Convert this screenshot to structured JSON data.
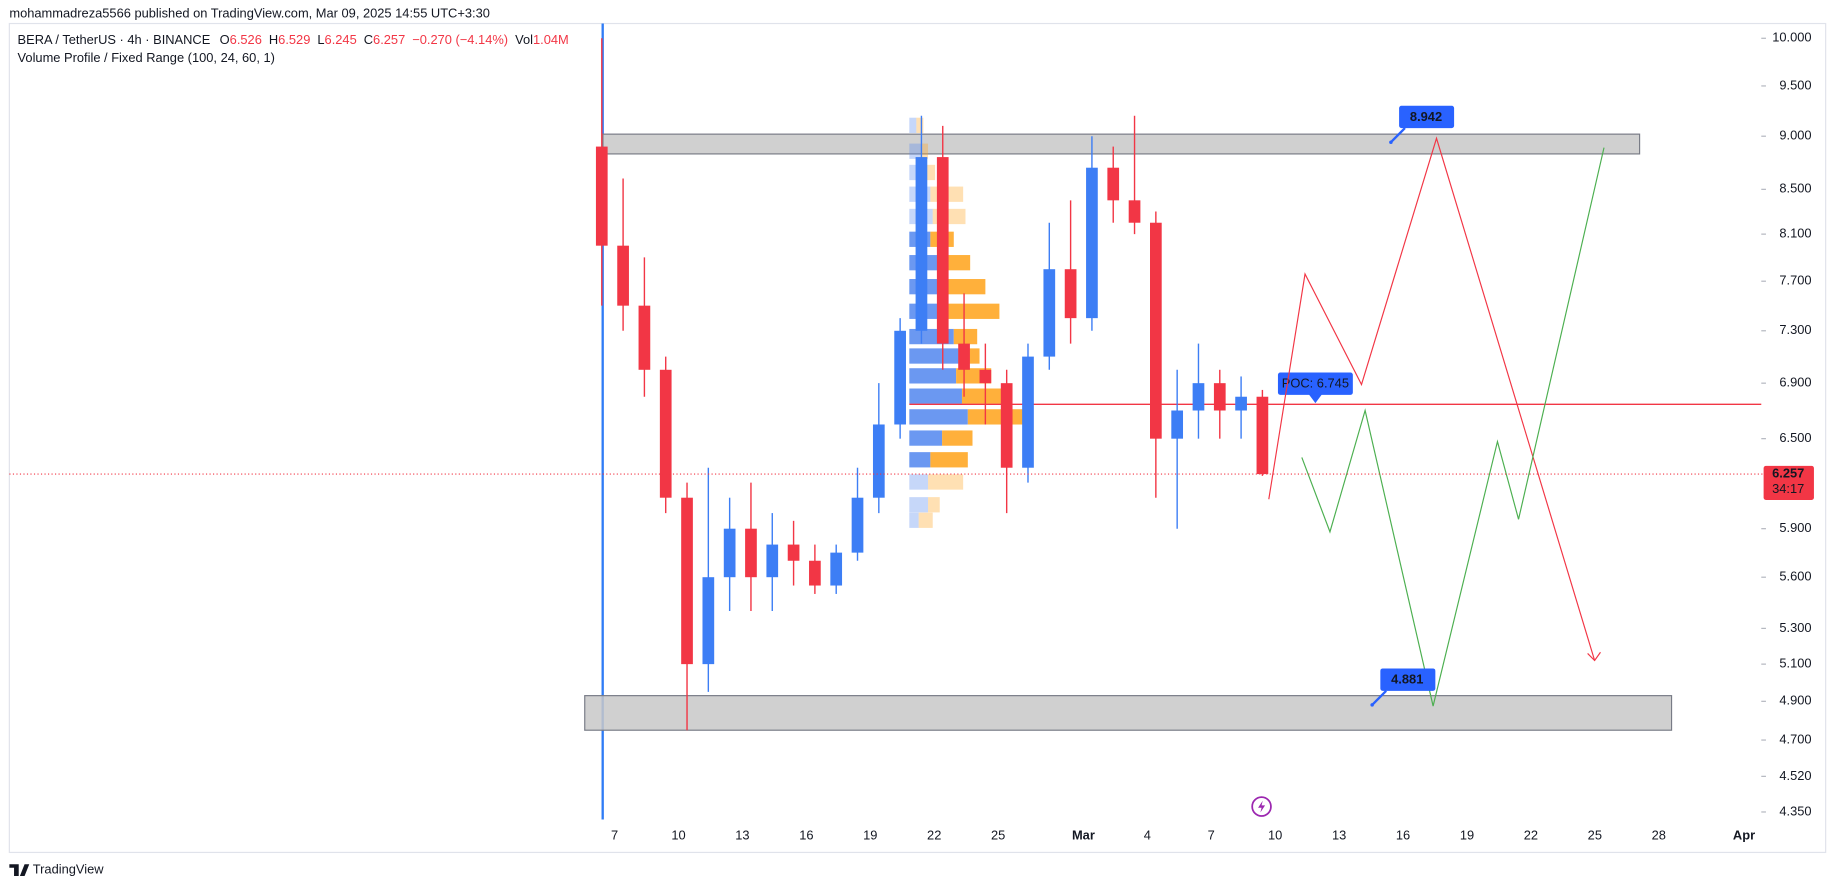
{
  "header": {
    "publisher": "mohammadreza5566 published on TradingView.com, Mar 09, 2025 14:55 UTC+3:30"
  },
  "legend": {
    "symbol": "BERA / TetherUS · 4h · BINANCE",
    "open_label": "O",
    "open": "6.526",
    "high_label": "H",
    "high": "6.529",
    "low_label": "L",
    "low": "6.245",
    "close_label": "C",
    "close": "6.257",
    "change": "−0.270 (−4.14%)",
    "volume_label": "Vol",
    "volume": "1.04M",
    "indicator": "Volume Profile / Fixed Range (100, 24, 60, 1)"
  },
  "chart_data": {
    "type": "candlestick",
    "log_scale": true,
    "grid": false,
    "up_color": "#3d7ef5",
    "down_color": "#f23645",
    "x": [
      37,
      38,
      39,
      40,
      41,
      42,
      43,
      44,
      45,
      46,
      47,
      48,
      49,
      50,
      51,
      52,
      53,
      54,
      55,
      56,
      57,
      58,
      59,
      60,
      61,
      62,
      63,
      64,
      65,
      66,
      67,
      68
    ],
    "open": [
      8.9,
      8.0,
      7.5,
      7.0,
      6.1,
      5.1,
      5.6,
      5.9,
      5.6,
      5.8,
      5.7,
      5.55,
      5.75,
      6.1,
      6.6,
      7.3,
      8.8,
      7.2,
      7.0,
      6.9,
      6.3,
      7.1,
      7.8,
      7.4,
      8.7,
      8.4,
      8.2,
      6.5,
      6.7,
      6.9,
      6.7,
      6.8
    ],
    "high": [
      10.0,
      8.6,
      7.9,
      7.1,
      6.2,
      6.3,
      6.1,
      6.2,
      6.0,
      5.95,
      5.8,
      5.8,
      6.3,
      6.9,
      7.4,
      9.2,
      9.1,
      7.6,
      7.2,
      7.0,
      7.2,
      8.2,
      8.4,
      9.0,
      8.9,
      9.2,
      8.3,
      7.0,
      7.2,
      7.0,
      6.95,
      6.85
    ],
    "low": [
      7.5,
      7.3,
      6.8,
      6.0,
      4.75,
      4.95,
      5.4,
      5.4,
      5.4,
      5.55,
      5.5,
      5.5,
      5.7,
      6.0,
      6.5,
      7.2,
      7.0,
      6.8,
      6.6,
      6.0,
      6.2,
      7.0,
      7.2,
      7.3,
      8.2,
      8.1,
      6.1,
      5.9,
      6.5,
      6.5,
      6.5,
      6.245
    ],
    "close": [
      8.0,
      7.5,
      7.0,
      6.1,
      5.1,
      5.6,
      5.9,
      5.6,
      5.8,
      5.7,
      5.55,
      5.75,
      6.1,
      6.6,
      7.3,
      8.8,
      7.2,
      7.0,
      6.9,
      6.3,
      7.1,
      7.8,
      7.4,
      8.7,
      8.4,
      8.2,
      6.5,
      6.7,
      6.9,
      6.7,
      6.8,
      6.257
    ],
    "xlim": [
      9.6,
      91.7
    ],
    "xticks": [
      {
        "value": 38,
        "label": "7"
      },
      {
        "value": 41,
        "label": "10"
      },
      {
        "value": 44,
        "label": "13"
      },
      {
        "value": 47,
        "label": "16"
      },
      {
        "value": 50,
        "label": "19"
      },
      {
        "value": 53,
        "label": "22"
      },
      {
        "value": 56,
        "label": "25"
      },
      {
        "value": 60,
        "label": "Mar"
      },
      {
        "value": 63,
        "label": "4"
      },
      {
        "value": 66,
        "label": "7"
      },
      {
        "value": 69,
        "label": "10"
      },
      {
        "value": 72,
        "label": "13"
      },
      {
        "value": 75,
        "label": "16"
      },
      {
        "value": 78,
        "label": "19"
      },
      {
        "value": 81,
        "label": "22"
      },
      {
        "value": 84,
        "label": "25"
      },
      {
        "value": 87,
        "label": "28"
      },
      {
        "value": 91,
        "label": "Apr"
      }
    ],
    "ylim": [
      4.17,
      10.16
    ],
    "yticks": [
      {
        "value": 10,
        "label": "10.000"
      },
      {
        "value": 9.5,
        "label": "9.500"
      },
      {
        "value": 9,
        "label": "9.000"
      },
      {
        "value": 8.5,
        "label": "8.500"
      },
      {
        "value": 8.1,
        "label": "8.100"
      },
      {
        "value": 7.7,
        "label": "7.700"
      },
      {
        "value": 7.3,
        "label": "7.300"
      },
      {
        "value": 6.9,
        "label": "6.900"
      },
      {
        "value": 6.5,
        "label": "6.500"
      },
      {
        "value": 5.9,
        "label": "5.900"
      },
      {
        "value": 5.6,
        "label": "5.600"
      },
      {
        "value": 5.3,
        "label": "5.300"
      },
      {
        "value": 5.1,
        "label": "5.100"
      },
      {
        "value": 4.9,
        "label": "4.900"
      },
      {
        "value": 4.7,
        "label": "4.700"
      },
      {
        "value": 4.52,
        "label": "4.520"
      },
      {
        "value": 4.35,
        "label": "4.350"
      }
    ],
    "volume_profile": {
      "up_color": "#5b8def",
      "down_color": "#ffa726",
      "levels": [
        9.1,
        8.85,
        8.65,
        8.45,
        8.25,
        8.05,
        7.85,
        7.65,
        7.45,
        7.25,
        7.1,
        6.95,
        6.8,
        6.65,
        6.5,
        6.35,
        6.2,
        6.05,
        5.95
      ],
      "up_volume": [
        6,
        10,
        12,
        18,
        20,
        18,
        28,
        30,
        32,
        38,
        42,
        40,
        45,
        50,
        28,
        18,
        16,
        16,
        8
      ],
      "down_volume": [
        6,
        6,
        10,
        28,
        28,
        20,
        24,
        35,
        45,
        20,
        18,
        30,
        38,
        54,
        26,
        32,
        30,
        10,
        12
      ],
      "poc": 6.745,
      "poc_label": "POC: 6.745",
      "poc_color": "#f23645"
    },
    "zones": [
      {
        "x": [
          37.45,
          86.1
        ],
        "y": [
          8.83,
          9.02
        ]
      },
      {
        "x": [
          36.6,
          87.6
        ],
        "y": [
          4.75,
          4.93
        ]
      }
    ],
    "paths": [
      {
        "color": "#f23645",
        "x": [
          68.7,
          70.4,
          73.05,
          76.57,
          83.99
        ],
        "y": [
          6.09,
          7.76,
          6.89,
          8.98,
          5.12
        ]
      },
      {
        "color": "#4caf50",
        "x": [
          70.25,
          71.57,
          73.22,
          76.41,
          79.43,
          80.42,
          84.43
        ],
        "y": [
          6.37,
          5.88,
          6.7,
          4.875,
          6.48,
          5.96,
          8.89
        ]
      }
    ],
    "price_labels": [
      {
        "x": 74.43,
        "value": 8.942
      },
      {
        "x": 73.55,
        "value": 4.881
      }
    ],
    "last_price": 6.257,
    "countdown": "34:17"
  },
  "footer": {
    "brand": "TradingView"
  }
}
